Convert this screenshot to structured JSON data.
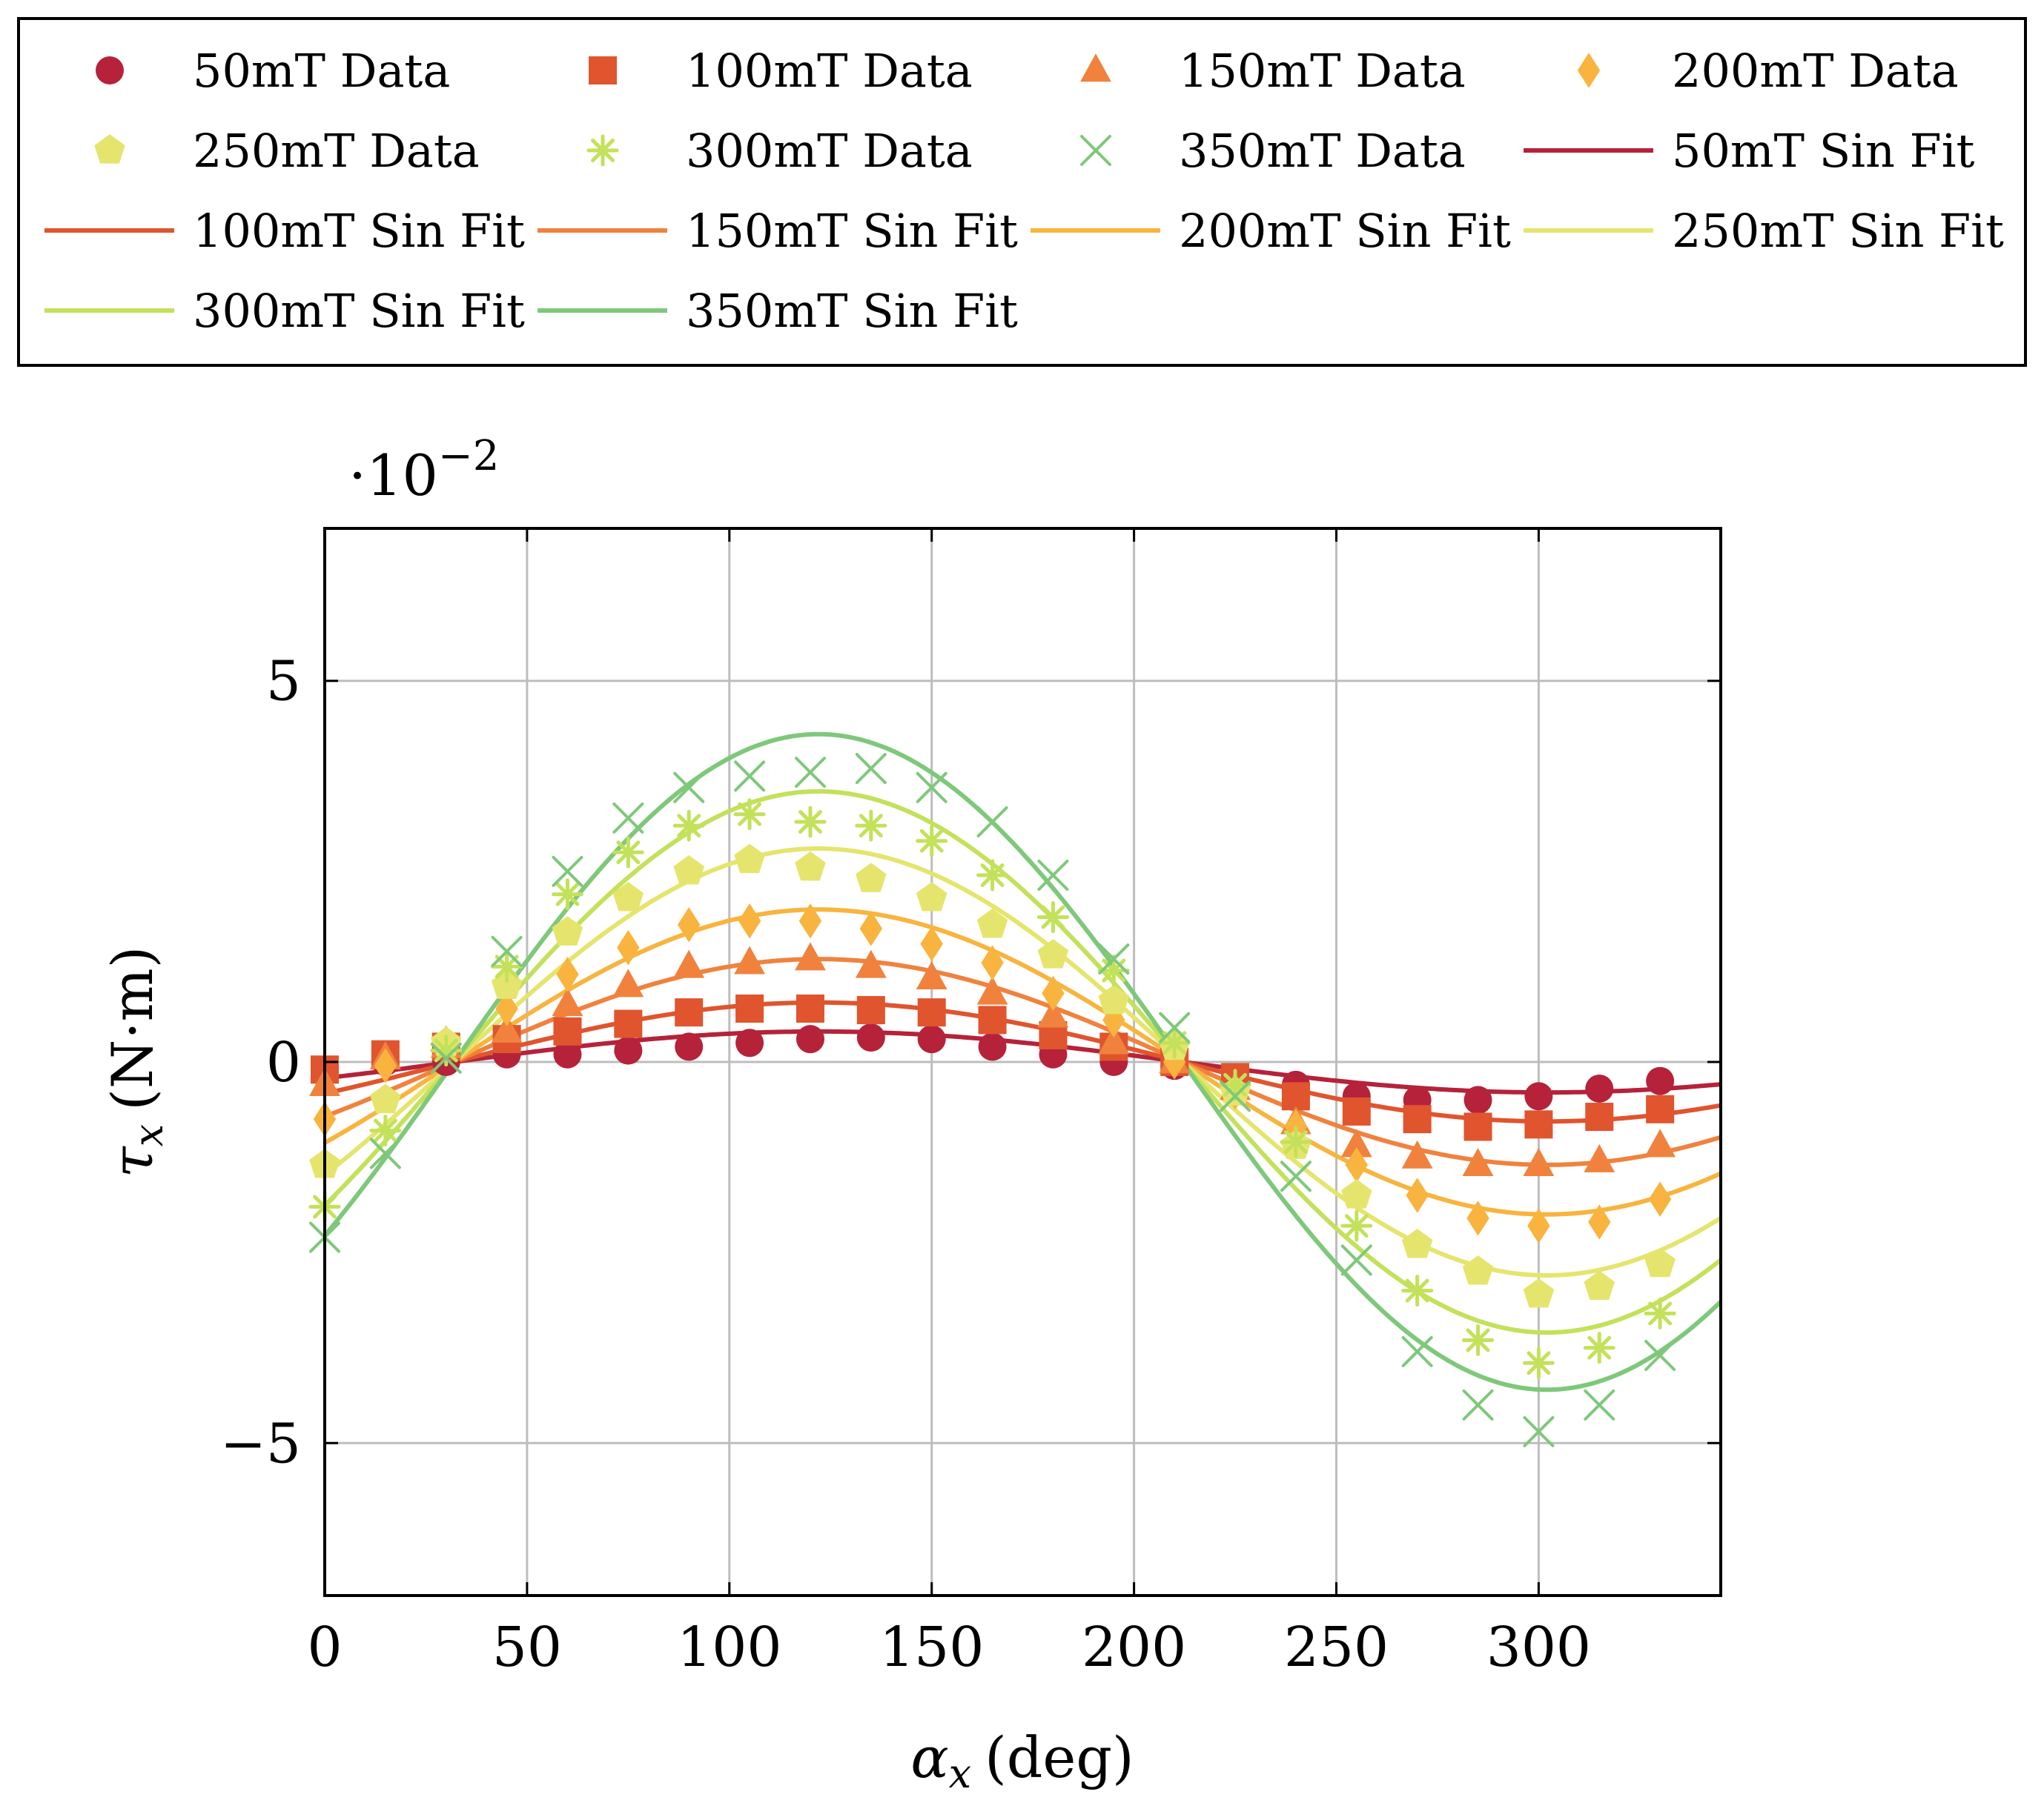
{
  "chart_data": {
    "type": "scatter",
    "xlabel_symbol": "α",
    "xlabel_sub": "x",
    "xlabel_unit": "(deg)",
    "ylabel_symbol": "τ",
    "ylabel_sub": "x",
    "ylabel_unit": "(N·m)",
    "y_multiplier_base": "·10",
    "y_multiplier_exp": "−2",
    "xlim": [
      0,
      345
    ],
    "ylim": [
      -7,
      7
    ],
    "x_ticks": [
      0,
      50,
      100,
      150,
      200,
      250,
      300
    ],
    "y_ticks": [
      -5,
      0,
      5
    ],
    "x_tick_labels": [
      "0",
      "50",
      "100",
      "150",
      "200",
      "250",
      "300"
    ],
    "y_tick_labels": [
      "−5",
      "0",
      "5"
    ],
    "grid": true,
    "legend_position": "top",
    "x": [
      0,
      15,
      30,
      45,
      60,
      75,
      90,
      105,
      120,
      135,
      150,
      165,
      180,
      195,
      210,
      225,
      240,
      255,
      270,
      285,
      300,
      315,
      330
    ],
    "series": [
      {
        "name": "50mT Data",
        "marker": "circle",
        "color": "#b5223a",
        "values": [
          -0.1,
          0.0,
          0.0,
          0.1,
          0.1,
          0.15,
          0.2,
          0.25,
          0.3,
          0.32,
          0.3,
          0.2,
          0.1,
          0.0,
          -0.05,
          -0.2,
          -0.3,
          -0.45,
          -0.5,
          -0.5,
          -0.45,
          -0.35,
          -0.25
        ]
      },
      {
        "name": "100mT Data",
        "marker": "square",
        "color": "#e0542e",
        "values": [
          -0.1,
          0.1,
          0.2,
          0.3,
          0.4,
          0.5,
          0.65,
          0.7,
          0.7,
          0.68,
          0.65,
          0.55,
          0.35,
          0.2,
          0.0,
          -0.2,
          -0.45,
          -0.65,
          -0.75,
          -0.85,
          -0.82,
          -0.72,
          -0.62
        ]
      },
      {
        "name": "150mT Data",
        "marker": "triangle",
        "color": "#f0823e",
        "values": [
          -0.3,
          0.05,
          0.2,
          0.4,
          0.75,
          1.0,
          1.25,
          1.3,
          1.35,
          1.25,
          1.1,
          0.9,
          0.6,
          0.25,
          0.0,
          -0.35,
          -0.8,
          -1.1,
          -1.25,
          -1.35,
          -1.35,
          -1.3,
          -1.1
        ]
      },
      {
        "name": "200mT Data",
        "marker": "diamond",
        "color": "#f8b43e",
        "values": [
          -0.75,
          -0.05,
          0.25,
          0.7,
          1.15,
          1.5,
          1.8,
          1.85,
          1.85,
          1.75,
          1.55,
          1.3,
          0.9,
          0.55,
          0.0,
          -0.4,
          -0.85,
          -1.35,
          -1.75,
          -2.05,
          -2.15,
          -2.1,
          -1.8
        ]
      },
      {
        "name": "250mT Data",
        "marker": "pentagon",
        "color": "#e5e56e",
        "values": [
          -1.35,
          -0.5,
          0.25,
          1.0,
          1.7,
          2.15,
          2.5,
          2.65,
          2.55,
          2.4,
          2.15,
          1.8,
          1.4,
          0.8,
          0.2,
          -0.4,
          -1.1,
          -1.75,
          -2.4,
          -2.75,
          -3.05,
          -2.95,
          -2.65
        ]
      },
      {
        "name": "300mT Data",
        "marker": "asterisk",
        "color": "#c3e15a",
        "values": [
          -1.9,
          -0.9,
          0.15,
          1.25,
          2.2,
          2.75,
          3.1,
          3.25,
          3.15,
          3.1,
          2.9,
          2.45,
          1.9,
          1.2,
          0.25,
          -0.3,
          -1.05,
          -2.15,
          -3.0,
          -3.65,
          -3.95,
          -3.75,
          -3.3
        ]
      },
      {
        "name": "350mT Data",
        "marker": "cross",
        "color": "#7ec87a",
        "values": [
          -2.3,
          -1.2,
          0.05,
          1.45,
          2.5,
          3.2,
          3.6,
          3.75,
          3.8,
          3.85,
          3.6,
          3.15,
          2.45,
          1.35,
          0.45,
          -0.45,
          -1.5,
          -2.6,
          -3.8,
          -4.5,
          -4.85,
          -4.5,
          -3.85
        ]
      },
      {
        "name": "50mT Sin Fit",
        "type": "line",
        "color": "#b5223a",
        "amplitude": 0.4,
        "zero_crossing_deg": 32
      },
      {
        "name": "100mT Sin Fit",
        "type": "line",
        "color": "#e0542e",
        "amplitude": 0.78,
        "zero_crossing_deg": 32
      },
      {
        "name": "150mT Sin Fit",
        "type": "line",
        "color": "#f0823e",
        "amplitude": 1.35,
        "zero_crossing_deg": 32
      },
      {
        "name": "200mT Sin Fit",
        "type": "line",
        "color": "#f8b43e",
        "amplitude": 2.0,
        "zero_crossing_deg": 32
      },
      {
        "name": "250mT Sin Fit",
        "type": "line",
        "color": "#e5e56e",
        "amplitude": 2.8,
        "zero_crossing_deg": 32
      },
      {
        "name": "300mT Sin Fit",
        "type": "line",
        "color": "#c3e15a",
        "amplitude": 3.55,
        "zero_crossing_deg": 32
      },
      {
        "name": "350mT Sin Fit",
        "type": "line",
        "color": "#7ec87a",
        "amplitude": 4.3,
        "zero_crossing_deg": 32
      }
    ]
  }
}
